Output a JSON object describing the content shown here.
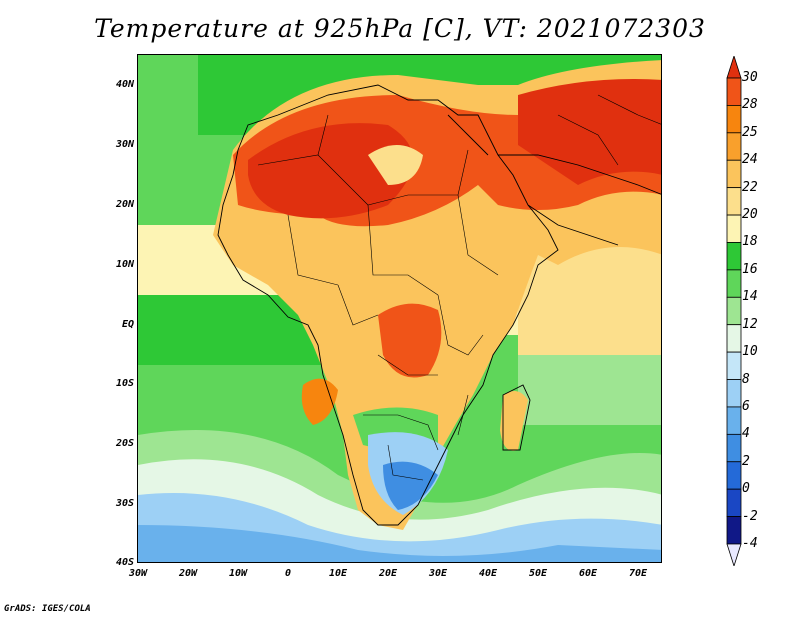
{
  "title": "Temperature at 925hPa [C], VT: 2021072303",
  "credit": "GrADS: IGES/COLA",
  "map": {
    "projection": "lat-lon",
    "lon_range": [
      -30,
      75
    ],
    "lat_range": [
      -40,
      45
    ],
    "lat_ticks": [
      {
        "value": 40,
        "label": "40N"
      },
      {
        "value": 30,
        "label": "30N"
      },
      {
        "value": 20,
        "label": "20N"
      },
      {
        "value": 10,
        "label": "10N"
      },
      {
        "value": 0,
        "label": "EQ"
      },
      {
        "value": -10,
        "label": "10S"
      },
      {
        "value": -20,
        "label": "20S"
      },
      {
        "value": -30,
        "label": "30S"
      },
      {
        "value": -40,
        "label": "40S"
      }
    ],
    "lon_ticks": [
      {
        "value": -30,
        "label": "30W"
      },
      {
        "value": -20,
        "label": "20W"
      },
      {
        "value": -10,
        "label": "10W"
      },
      {
        "value": 0,
        "label": "0"
      },
      {
        "value": 10,
        "label": "10E"
      },
      {
        "value": 20,
        "label": "20E"
      },
      {
        "value": 30,
        "label": "30E"
      },
      {
        "value": 40,
        "label": "40E"
      },
      {
        "value": 50,
        "label": "50E"
      },
      {
        "value": 60,
        "label": "60E"
      },
      {
        "value": 70,
        "label": "70E"
      }
    ]
  },
  "colorbar": {
    "labels": [
      "30",
      "28",
      "25",
      "24",
      "22",
      "20",
      "18",
      "16",
      "14",
      "12",
      "10",
      "8",
      "6",
      "4",
      "2",
      "0",
      "-2",
      "-4"
    ],
    "colors": [
      "#e0300f",
      "#f05418",
      "#f7850e",
      "#f9a02c",
      "#fbc45c",
      "#fcdf8c",
      "#fdf4b4",
      "#2ec836",
      "#5fd65a",
      "#9ee592",
      "#e5f7e6",
      "#c4e6f8",
      "#9dd0f5",
      "#69b1ec",
      "#3f8ee2",
      "#246ad8",
      "#1a47c4",
      "#101887",
      "#e9e9ff"
    ]
  }
}
